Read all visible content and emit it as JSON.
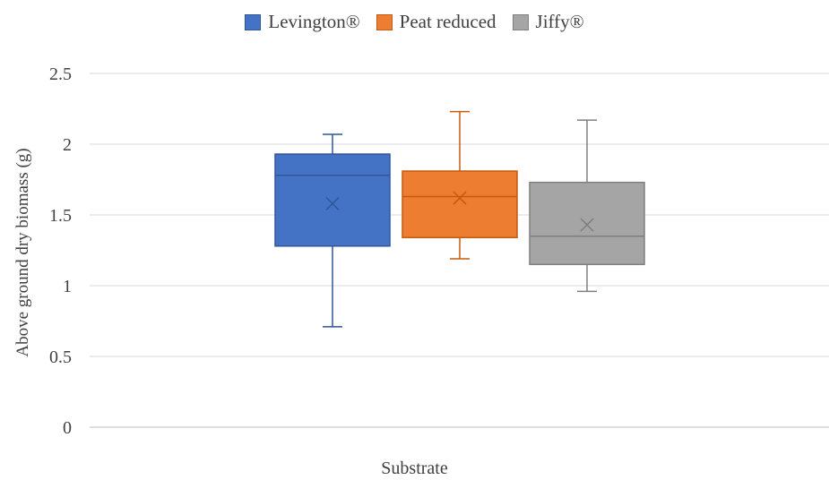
{
  "chart_data": {
    "type": "box",
    "title": "",
    "xlabel": "Substrate",
    "ylabel": "Above ground dry biomass (g)",
    "ylim": [
      0,
      2.5
    ],
    "yticks": [
      "0",
      "0.5",
      "1",
      "1.5",
      "2",
      "2.5"
    ],
    "grid": true,
    "legend_position": "top",
    "series": [
      {
        "name": "Levington®",
        "color": "#4472C4",
        "stroke": "#2F5597",
        "min": 0.71,
        "q1": 1.28,
        "median": 1.78,
        "q3": 1.93,
        "max": 2.07,
        "mean": 1.58
      },
      {
        "name": "Peat reduced",
        "color": "#ED7D31",
        "stroke": "#C55A11",
        "min": 1.19,
        "q1": 1.34,
        "median": 1.63,
        "q3": 1.81,
        "max": 2.23,
        "mean": 1.62
      },
      {
        "name": "Jiffy®",
        "color": "#A5A5A5",
        "stroke": "#7F7F7F",
        "min": 0.96,
        "q1": 1.15,
        "median": 1.35,
        "q3": 1.73,
        "max": 2.17,
        "mean": 1.43
      }
    ]
  }
}
